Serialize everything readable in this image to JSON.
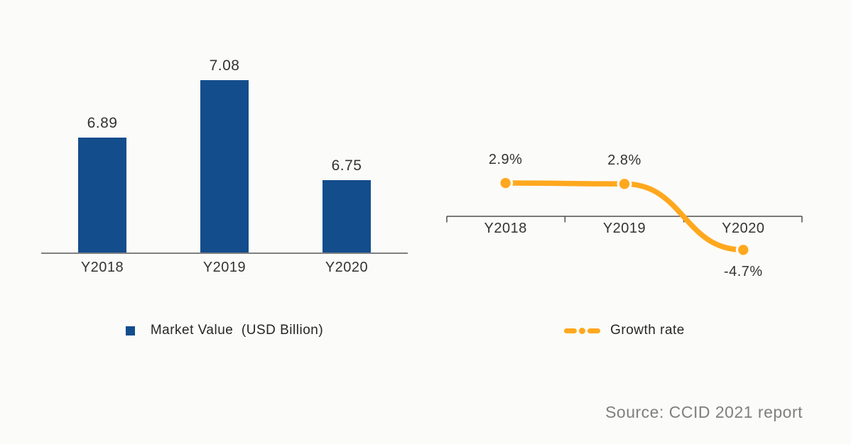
{
  "background": "#FBFBF9",
  "chart_data": [
    {
      "type": "bar",
      "title": "",
      "categories": [
        "Y2018",
        "Y2019",
        "Y2020"
      ],
      "values": [
        6.89,
        7.08,
        6.75
      ],
      "data_labels": [
        "6.89",
        "7.08",
        "6.75"
      ],
      "legend": "Market Value  (USD Billion)",
      "legend_position": "bottom",
      "legend_marker": "square",
      "bar_color": "#134D8C",
      "axis_line_color": "#808080",
      "label_color": "#333333",
      "ylim": [
        6.51,
        7.08
      ],
      "grid": false
    },
    {
      "type": "line",
      "title": "",
      "categories": [
        "Y2018",
        "Y2019",
        "Y2020"
      ],
      "values": [
        2.9,
        2.8,
        -4.7
      ],
      "data_labels": [
        "2.9%",
        "2.8%",
        "-4.7%"
      ],
      "legend": "Growth rate",
      "legend_position": "bottom",
      "legend_marker": "dash-dot-dash",
      "line_color": "#FFA81E",
      "marker_style": "circle",
      "axis_line_color": "#4F4F4F",
      "label_color": "#333333",
      "ylim": [
        -6.5,
        4.5
      ],
      "grid": false
    }
  ],
  "source_note": {
    "text": "Source: CCID 2021 report"
  }
}
